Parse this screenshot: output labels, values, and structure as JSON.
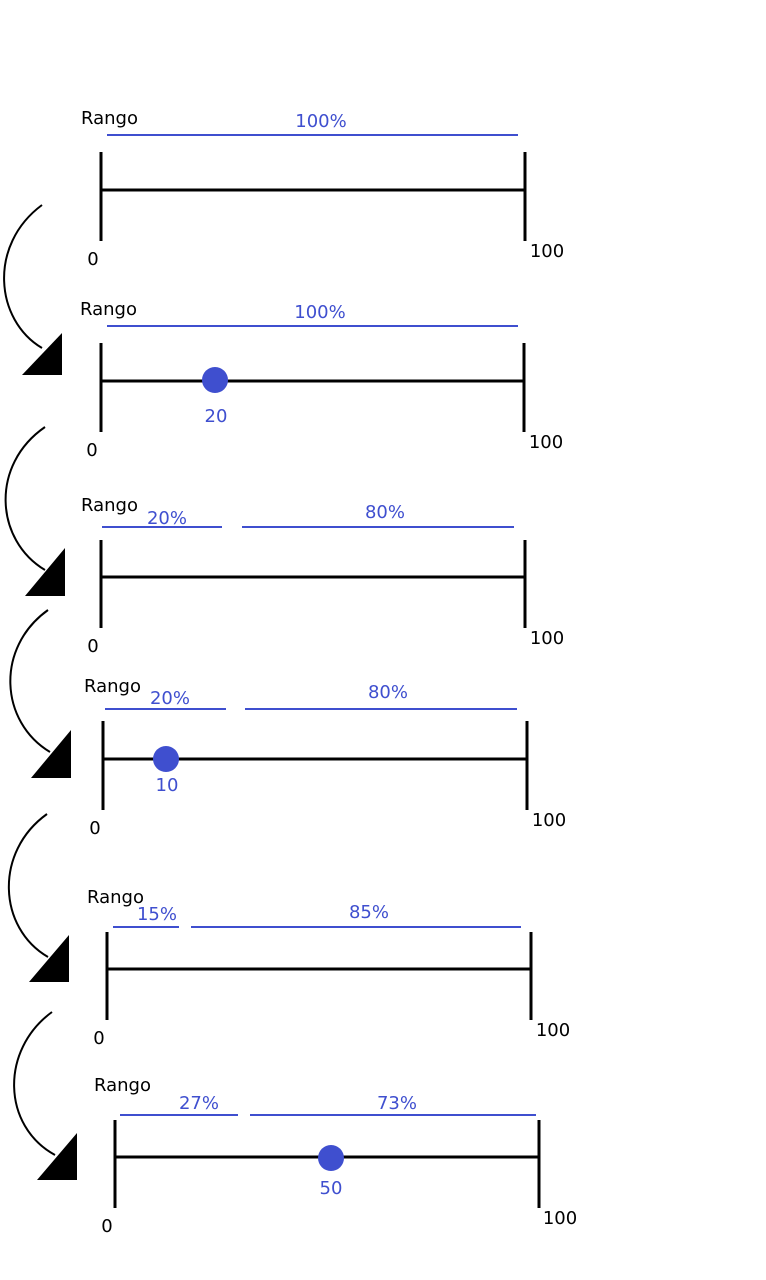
{
  "panels": [
    {
      "label": "Rango",
      "min": "0",
      "max": "100",
      "segments": [
        "100%"
      ]
    },
    {
      "label": "Rango",
      "min": "0",
      "max": "100",
      "segments": [
        "100%"
      ],
      "point": "20"
    },
    {
      "label": "Rango",
      "min": "0",
      "max": "100",
      "segments": [
        "20%",
        "80%"
      ]
    },
    {
      "label": "Rango",
      "min": "0",
      "max": "100",
      "segments": [
        "20%",
        "80%"
      ],
      "point": "10"
    },
    {
      "label": "Rango",
      "min": "0",
      "max": "100",
      "segments": [
        "15%",
        "85%"
      ]
    },
    {
      "label": "Rango",
      "min": "0",
      "max": "100",
      "segments": [
        "27%",
        "73%"
      ],
      "point": "50"
    }
  ]
}
